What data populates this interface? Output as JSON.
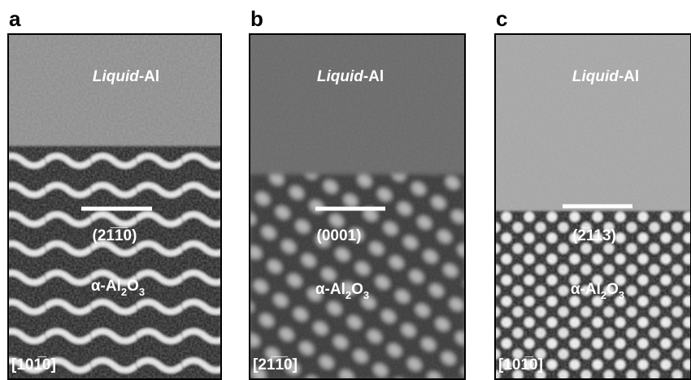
{
  "panels": [
    {
      "label": "a",
      "top_text": [
        "Liquid",
        "-Al"
      ],
      "plane": "(21̅1̅0)",
      "phase": [
        "α-Al",
        "2",
        "O",
        "3"
      ],
      "zone": "[101̅0]"
    },
    {
      "label": "b",
      "top_text": [
        "Liquid",
        "-Al"
      ],
      "plane": "(0001)",
      "phase": [
        "α-Al",
        "2",
        "O",
        "3"
      ],
      "zone": "[21̅1̅0]"
    },
    {
      "label": "c",
      "top_text": [
        "Liquid",
        "-Al"
      ],
      "plane": "(2̅113)",
      "phase": [
        "α-Al",
        "2",
        "O",
        "3"
      ],
      "zone": "[101̅0]"
    }
  ]
}
